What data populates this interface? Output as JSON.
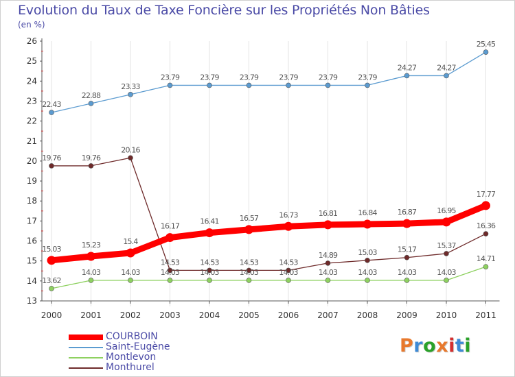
{
  "title": "Evolution du Taux de Taxe Foncière sur les Propriétés Non Bâties",
  "unit_label": "(en %)",
  "brand": {
    "text": "Proxiti",
    "letter_colors": [
      "#e8792d",
      "#3d8ad6",
      "#2aa12a",
      "#e8792d",
      "#d42f2f",
      "#3d8ad6",
      "#2aa12a"
    ]
  },
  "chart_data": {
    "type": "line",
    "title": "Evolution du Taux de Taxe Foncière sur les Propriétés Non Bâties",
    "xlabel": "",
    "ylabel": "(en %)",
    "ylim": [
      13,
      26
    ],
    "yticks": [
      13,
      14,
      15,
      16,
      17,
      18,
      19,
      20,
      21,
      22,
      23,
      24,
      25,
      26
    ],
    "categories": [
      "2000",
      "2001",
      "2002",
      "2003",
      "2004",
      "2005",
      "2006",
      "2007",
      "2008",
      "2009",
      "2010",
      "2011"
    ],
    "legend_position": "bottom-left",
    "series": [
      {
        "name": "COURBOIN",
        "color": "#ff0000",
        "values": [
          15.03,
          15.23,
          15.4,
          16.17,
          16.41,
          16.57,
          16.73,
          16.81,
          16.84,
          16.87,
          16.95,
          17.77
        ],
        "labels": [
          "15.03",
          "15.23",
          "15.4",
          "16.17",
          "16.41",
          "16.57",
          "16.73",
          "16.81",
          "16.84",
          "16.87",
          "16.95",
          "17.77"
        ]
      },
      {
        "name": "Saint-Eugène",
        "color": "#5b9bd0",
        "values": [
          22.43,
          22.88,
          23.33,
          23.79,
          23.79,
          23.79,
          23.79,
          23.79,
          23.79,
          24.27,
          24.27,
          25.45
        ],
        "labels": [
          "22.43",
          "22.88",
          "23.33",
          "23.79",
          "23.79",
          "23.79",
          "23.79",
          "23.79",
          "23.79",
          "24.27",
          "24.27",
          "25.45"
        ]
      },
      {
        "name": "Montlevon",
        "color": "#8ed160",
        "values": [
          13.62,
          14.03,
          14.03,
          14.03,
          14.03,
          14.03,
          14.03,
          14.03,
          14.03,
          14.03,
          14.03,
          14.71
        ],
        "labels": [
          "13.62",
          "14.03",
          "14.03",
          "14.03",
          "14.03",
          "14.03",
          "14.03",
          "14.03",
          "14.03",
          "14.03",
          "14.03",
          "14.71"
        ]
      },
      {
        "name": "Monthurel",
        "color": "#6e2a2a",
        "values": [
          19.76,
          19.76,
          20.16,
          14.53,
          14.53,
          14.53,
          14.53,
          14.89,
          15.03,
          15.17,
          15.37,
          16.36
        ],
        "labels": [
          "19.76",
          "19.76",
          "20.16",
          "14.53",
          "14.53",
          "14.53",
          "14.53",
          "14.89",
          "15.03",
          "15.17",
          "15.37",
          "16.36"
        ]
      }
    ]
  }
}
